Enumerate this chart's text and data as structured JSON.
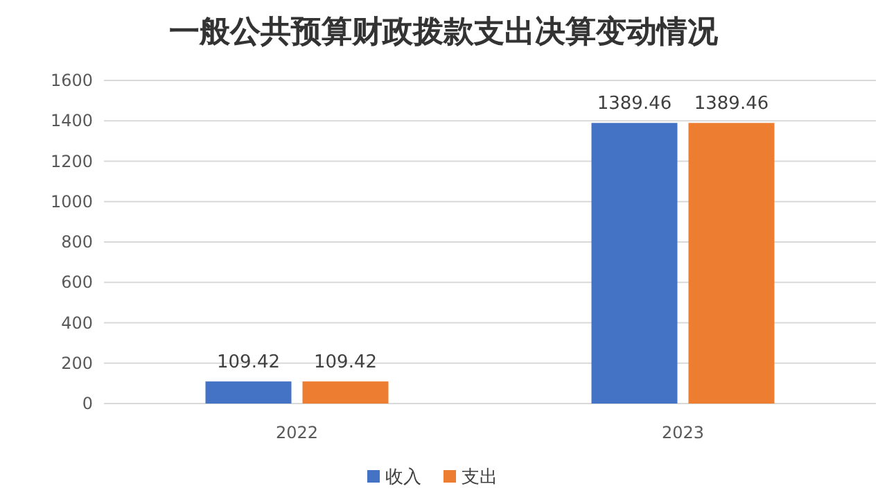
{
  "chart_data": {
    "type": "bar",
    "title": "一般公共预算财政拨款支出决算变动情况",
    "categories": [
      "2022",
      "2023"
    ],
    "series": [
      {
        "name": "收入",
        "color": "#4472c4",
        "values": [
          109.42,
          1389.46
        ]
      },
      {
        "name": "支出",
        "color": "#ed7d31",
        "values": [
          109.42,
          1389.46
        ]
      }
    ],
    "ylim": [
      0,
      1600
    ],
    "yticks": [
      0,
      200,
      400,
      600,
      800,
      1000,
      1200,
      1400,
      1600
    ],
    "grid": "y",
    "legend": "bottom",
    "data_labels": true
  }
}
